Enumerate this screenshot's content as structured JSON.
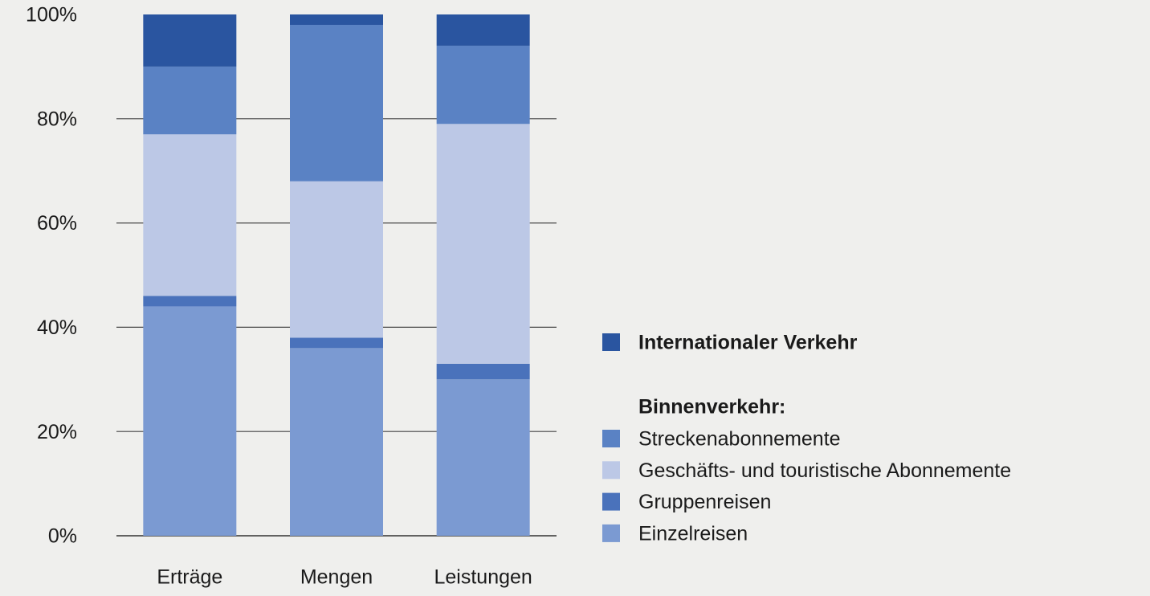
{
  "chart_data": {
    "type": "stacked_bar",
    "categories": [
      "Erträge",
      "Mengen",
      "Leistungen"
    ],
    "series": [
      {
        "name": "Einzelreisen",
        "color": "#7b9ad2",
        "values": [
          44,
          36,
          30
        ]
      },
      {
        "name": "Gruppenreisen",
        "color": "#4a72bb",
        "values": [
          2,
          2,
          3
        ]
      },
      {
        "name": "Geschäfts- und touristische Abonnemente",
        "color": "#bcc8e6",
        "values": [
          31,
          30,
          46
        ]
      },
      {
        "name": "Streckenabonnemente",
        "color": "#5a82c4",
        "values": [
          13,
          30,
          15
        ]
      },
      {
        "name": "Internationaler Verkehr",
        "color": "#2a55a0",
        "values": [
          10,
          2,
          6
        ]
      }
    ],
    "legend_group_label": "Binnenverkehr:",
    "ylim": [
      0,
      100
    ],
    "yticks": [
      {
        "value": 0,
        "label": "0%"
      },
      {
        "value": 20,
        "label": "20%"
      },
      {
        "value": 40,
        "label": "40%"
      },
      {
        "value": 60,
        "label": "60%"
      },
      {
        "value": 80,
        "label": "80%"
      },
      {
        "value": 100,
        "label": "100%"
      }
    ],
    "grid": true
  }
}
